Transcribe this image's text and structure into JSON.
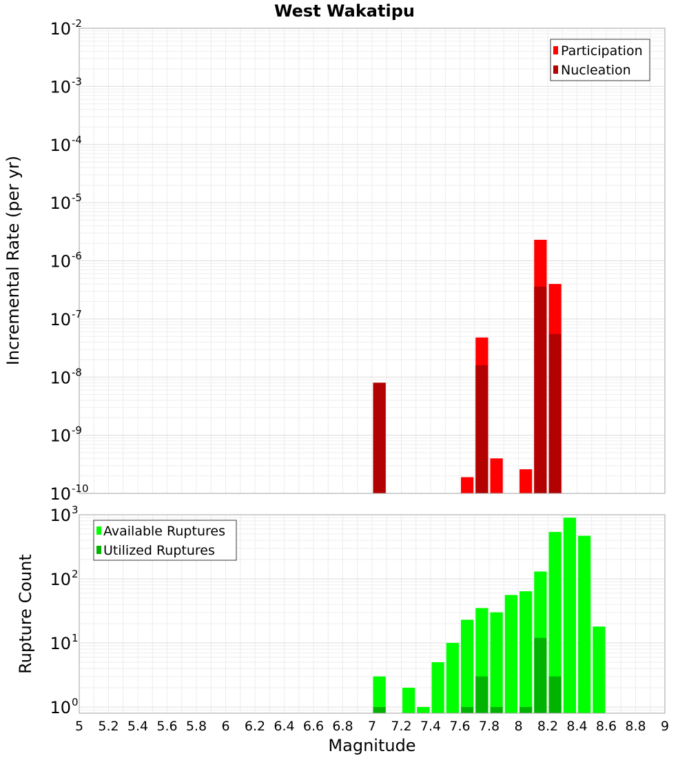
{
  "chart_data": [
    {
      "type": "bar",
      "title": "West Wakatipu",
      "ylabel": "Incremental Rate (per yr)",
      "xlabel": "",
      "yscale": "log",
      "ylim": [
        1e-10,
        0.01
      ],
      "xlim": [
        5,
        9
      ],
      "bin_width": 0.1,
      "grid": true,
      "legend_position": "top-right",
      "yticks": [
        {
          "base": "10",
          "exp": "-10"
        },
        {
          "base": "10",
          "exp": "-9"
        },
        {
          "base": "10",
          "exp": "-8"
        },
        {
          "base": "10",
          "exp": "-7"
        },
        {
          "base": "10",
          "exp": "-6"
        },
        {
          "base": "10",
          "exp": "-5"
        },
        {
          "base": "10",
          "exp": "-4"
        },
        {
          "base": "10",
          "exp": "-3"
        },
        {
          "base": "10",
          "exp": "-2"
        }
      ],
      "series": [
        {
          "name": "Participation",
          "color": "#ff0000",
          "points": [
            {
              "x": 7.05,
              "y": 8e-09
            },
            {
              "x": 7.65,
              "y": 1.9e-10
            },
            {
              "x": 7.75,
              "y": 4.8e-08
            },
            {
              "x": 7.85,
              "y": 4e-10
            },
            {
              "x": 8.05,
              "y": 2.6e-10
            },
            {
              "x": 8.15,
              "y": 2.3e-06
            },
            {
              "x": 8.25,
              "y": 4e-07
            }
          ]
        },
        {
          "name": "Nucleation",
          "color": "#b30000",
          "points": [
            {
              "x": 7.05,
              "y": 8e-09
            },
            {
              "x": 7.75,
              "y": 1.6e-08
            },
            {
              "x": 8.15,
              "y": 3.6e-07
            },
            {
              "x": 8.25,
              "y": 5.5e-08
            }
          ]
        }
      ]
    },
    {
      "type": "bar",
      "title": "",
      "ylabel": "Rupture Count",
      "xlabel": "Magnitude",
      "yscale": "log",
      "ylim": [
        0.8,
        1000
      ],
      "xlim": [
        5,
        9
      ],
      "bin_width": 0.1,
      "grid": true,
      "legend_position": "top-left",
      "xticks": [
        "5",
        "5.2",
        "5.4",
        "5.6",
        "5.8",
        "6",
        "6.2",
        "6.4",
        "6.6",
        "6.8",
        "7",
        "7.2",
        "7.4",
        "7.6",
        "7.8",
        "8",
        "8.2",
        "8.4",
        "8.6",
        "8.8",
        "9"
      ],
      "yticks": [
        {
          "base": "10",
          "exp": "0"
        },
        {
          "base": "10",
          "exp": "1"
        },
        {
          "base": "10",
          "exp": "2"
        },
        {
          "base": "10",
          "exp": "3"
        }
      ],
      "series": [
        {
          "name": "Available Ruptures",
          "color": "#00ff00",
          "points": [
            {
              "x": 7.05,
              "y": 3
            },
            {
              "x": 7.25,
              "y": 2
            },
            {
              "x": 7.35,
              "y": 1
            },
            {
              "x": 7.45,
              "y": 5
            },
            {
              "x": 7.55,
              "y": 10
            },
            {
              "x": 7.65,
              "y": 23
            },
            {
              "x": 7.75,
              "y": 35
            },
            {
              "x": 7.85,
              "y": 30
            },
            {
              "x": 7.95,
              "y": 56
            },
            {
              "x": 8.05,
              "y": 64
            },
            {
              "x": 8.15,
              "y": 130
            },
            {
              "x": 8.25,
              "y": 540
            },
            {
              "x": 8.35,
              "y": 900
            },
            {
              "x": 8.45,
              "y": 470
            },
            {
              "x": 8.55,
              "y": 18
            }
          ]
        },
        {
          "name": "Utilized Ruptures",
          "color": "#00b300",
          "points": [
            {
              "x": 7.05,
              "y": 1
            },
            {
              "x": 7.65,
              "y": 1
            },
            {
              "x": 7.75,
              "y": 3
            },
            {
              "x": 7.85,
              "y": 1
            },
            {
              "x": 8.05,
              "y": 1
            },
            {
              "x": 8.15,
              "y": 12
            },
            {
              "x": 8.25,
              "y": 3
            }
          ]
        }
      ]
    }
  ]
}
